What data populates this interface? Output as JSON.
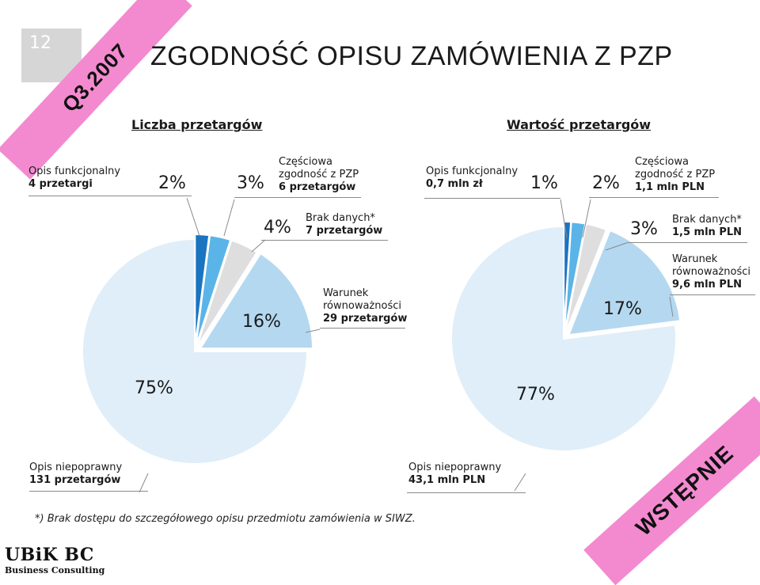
{
  "slide_number": "12",
  "title": "ZGODNOŚĆ OPISU ZAMÓWIENIA Z PZP",
  "ribbon_top": "Q3.2007",
  "ribbon_bottom": "WSTĘPNIE",
  "footnote": "*) Brak dostępu do szczegółowego opisu przedmiotu zamówienia w SIWZ.",
  "logo": {
    "name": "UBiK BC",
    "sub": "Business Consulting"
  },
  "colors": {
    "dark_blue": "#1a74c0",
    "mid_blue": "#5ab4e8",
    "gray": "#dedede",
    "light_blue": "#b4d8f0",
    "pale_blue": "#dfeef8",
    "ribbon": "#f38ad0"
  },
  "chart_data": [
    {
      "type": "pie",
      "title": "Liczba przetargów",
      "categories": [
        "Opis funkcjonalny",
        "Częściowa zgodność z PZP",
        "Brak danych*",
        "Warunek równoważności",
        "Opis niepoprawny"
      ],
      "values": [
        2,
        3,
        4,
        16,
        75
      ],
      "value_labels": [
        "2%",
        "3%",
        "4%",
        "16%",
        "75%"
      ],
      "details": [
        "4 przetargi",
        "6 przetargów",
        "7 przetargów",
        "29 przetargów",
        "131 przetargów"
      ]
    },
    {
      "type": "pie",
      "title": "Wartość przetargów",
      "categories": [
        "Opis funkcjonalny",
        "Częściowa zgodność z PZP",
        "Brak danych*",
        "Warunek równoważności",
        "Opis niepoprawny"
      ],
      "values": [
        1,
        2,
        3,
        17,
        77
      ],
      "value_labels": [
        "1%",
        "2%",
        "3%",
        "17%",
        "77%"
      ],
      "details": [
        "0,7 mln zł",
        "1,1 mln PLN",
        "1,5 mln PLN",
        "9,6 mln PLN",
        "43,1 mln PLN"
      ]
    }
  ]
}
